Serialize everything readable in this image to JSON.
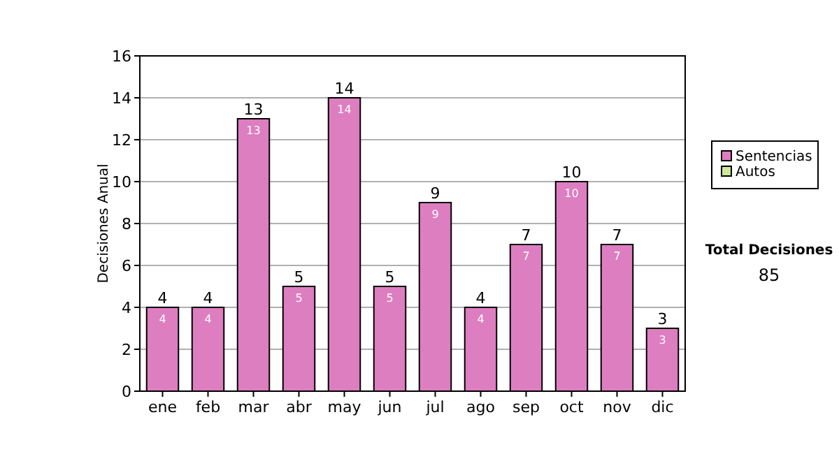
{
  "chart_data": {
    "type": "bar",
    "ylabel": "Decisiones Anual",
    "categories": [
      "ene",
      "feb",
      "mar",
      "abr",
      "may",
      "jun",
      "jul",
      "ago",
      "sep",
      "oct",
      "nov",
      "dic"
    ],
    "series": [
      {
        "name": "Sentencias",
        "color": "#dd7ec0",
        "values": [
          4,
          4,
          13,
          5,
          14,
          5,
          9,
          4,
          7,
          10,
          7,
          3
        ],
        "value_labels": [
          "4",
          "4",
          "13",
          "5",
          "14",
          "5",
          "9",
          "4",
          "7",
          "10",
          "7",
          "3"
        ]
      },
      {
        "name": "Autos",
        "color": "#cce899",
        "values": [
          0,
          0,
          0,
          0,
          0,
          0,
          0,
          0,
          0,
          0,
          0,
          0
        ]
      }
    ],
    "totals": [
      "4",
      "4",
      "13",
      "5",
      "14",
      "5",
      "9",
      "4",
      "7",
      "10",
      "7",
      "3"
    ],
    "ylim": [
      0,
      16
    ],
    "yticks": [
      0,
      2,
      4,
      6,
      8,
      10,
      12,
      14,
      16
    ],
    "grid": "y",
    "legend": "right",
    "annotations": [
      "Total Decisiones",
      "85"
    ]
  }
}
